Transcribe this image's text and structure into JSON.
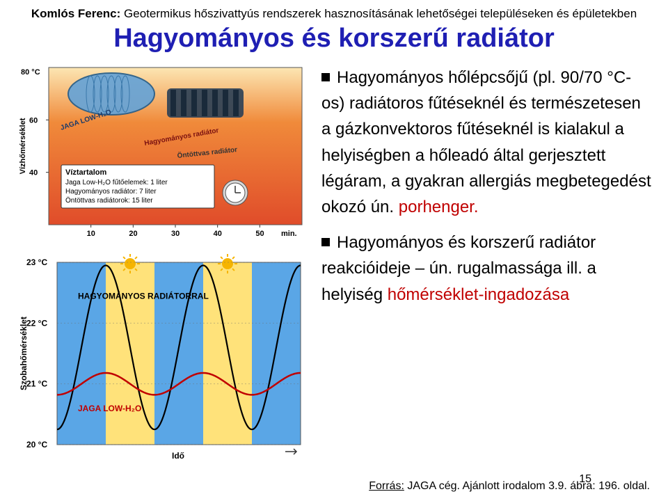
{
  "header": {
    "author": "Komlós Ferenc:",
    "rest": " Geotermikus hőszivattyús rendszerek hasznosításának lehetőségei településeken és épületekben"
  },
  "title": "Hagyományos és korszerű radiátor",
  "bullets": {
    "b1_pre": "Hagyományos hőlépcsőjű (pl. 90/70 °C-os) radiátoros fűtéseknél és természetesen a gázkonvektoros fűtéseknél is kialakul a  helyiségben a hőleadó által gerjesztett légáram, a gyakran allergiás megbetegedést okozó ún. ",
    "b1_red": "porhenger.",
    "b2_pre": "Hagyományos és korszerű radiátor reakcióideje – ún. rugalmassága ill. a helyiség ",
    "b2_red": "hőmérséklet-ingadozása"
  },
  "figures": {
    "top": {
      "bg_top": "#fce6b3",
      "bg_mid": "#f08a3a",
      "bg_low": "#e04c2a",
      "radiator_blue": "#6aa4d4",
      "radiator_dark": "#2a3f55",
      "grid_color": "#6b6b6b",
      "y_label": "Vízhőmérséklet",
      "y_max_label": "80 °C",
      "y_ticks": [
        "60",
        "40"
      ],
      "x_label": "min.",
      "x_ticks": [
        "10",
        "20",
        "30",
        "40",
        "50"
      ],
      "rad_labels": {
        "blue": "JAGA LOW-H₂O",
        "red": "Hagyományos radiátor",
        "cast": "Öntöttvas radiátor"
      },
      "box_title": "Víztartalom",
      "box_lines": [
        "Jaga Low-H₂O fűtőelemek: 1 liter",
        "Hagyományos radiátor: 7 liter",
        "Öntöttvas radiátorok: 15 liter"
      ],
      "clock_icon_color": "#d9d9d9"
    },
    "bottom": {
      "band_on": "#ffe27a",
      "band_off": "#5aa6e6",
      "sun_color": "#f6b400",
      "grid_color": "#6b6b6b",
      "y_label": "Szobahőmérséklet",
      "y_ticks": [
        "23 °C",
        "22 °C",
        "21 °C",
        "20 °C"
      ],
      "x_label": "Idő",
      "trad_label": "HAGYOMÁNYOS RADIÁTORRAL",
      "trad_color": "#000000",
      "jaga_label": "JAGA LOW-H₂O",
      "jaga_color": "#c00000",
      "band_count": 5
    }
  },
  "footer": {
    "source_label": "Forrás:",
    "rest": " JAGA cég. Ajánlott irodalom 3.9. ábra: 196. oldal.",
    "page": "15"
  }
}
